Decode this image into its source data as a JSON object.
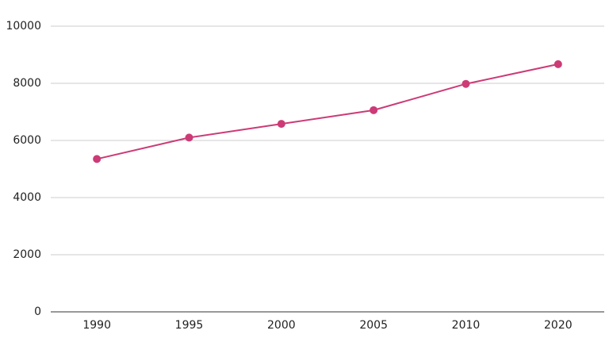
{
  "chart_data": {
    "type": "line",
    "categories": [
      "1990",
      "1995",
      "2000",
      "2005",
      "2010",
      "2020"
    ],
    "values": [
      5350,
      6100,
      6580,
      7060,
      7980,
      8670
    ],
    "color": "#cc3b76",
    "ylim": [
      0,
      10000
    ],
    "yticks": [
      0,
      2000,
      4000,
      6000,
      8000,
      10000
    ],
    "grid": true
  }
}
